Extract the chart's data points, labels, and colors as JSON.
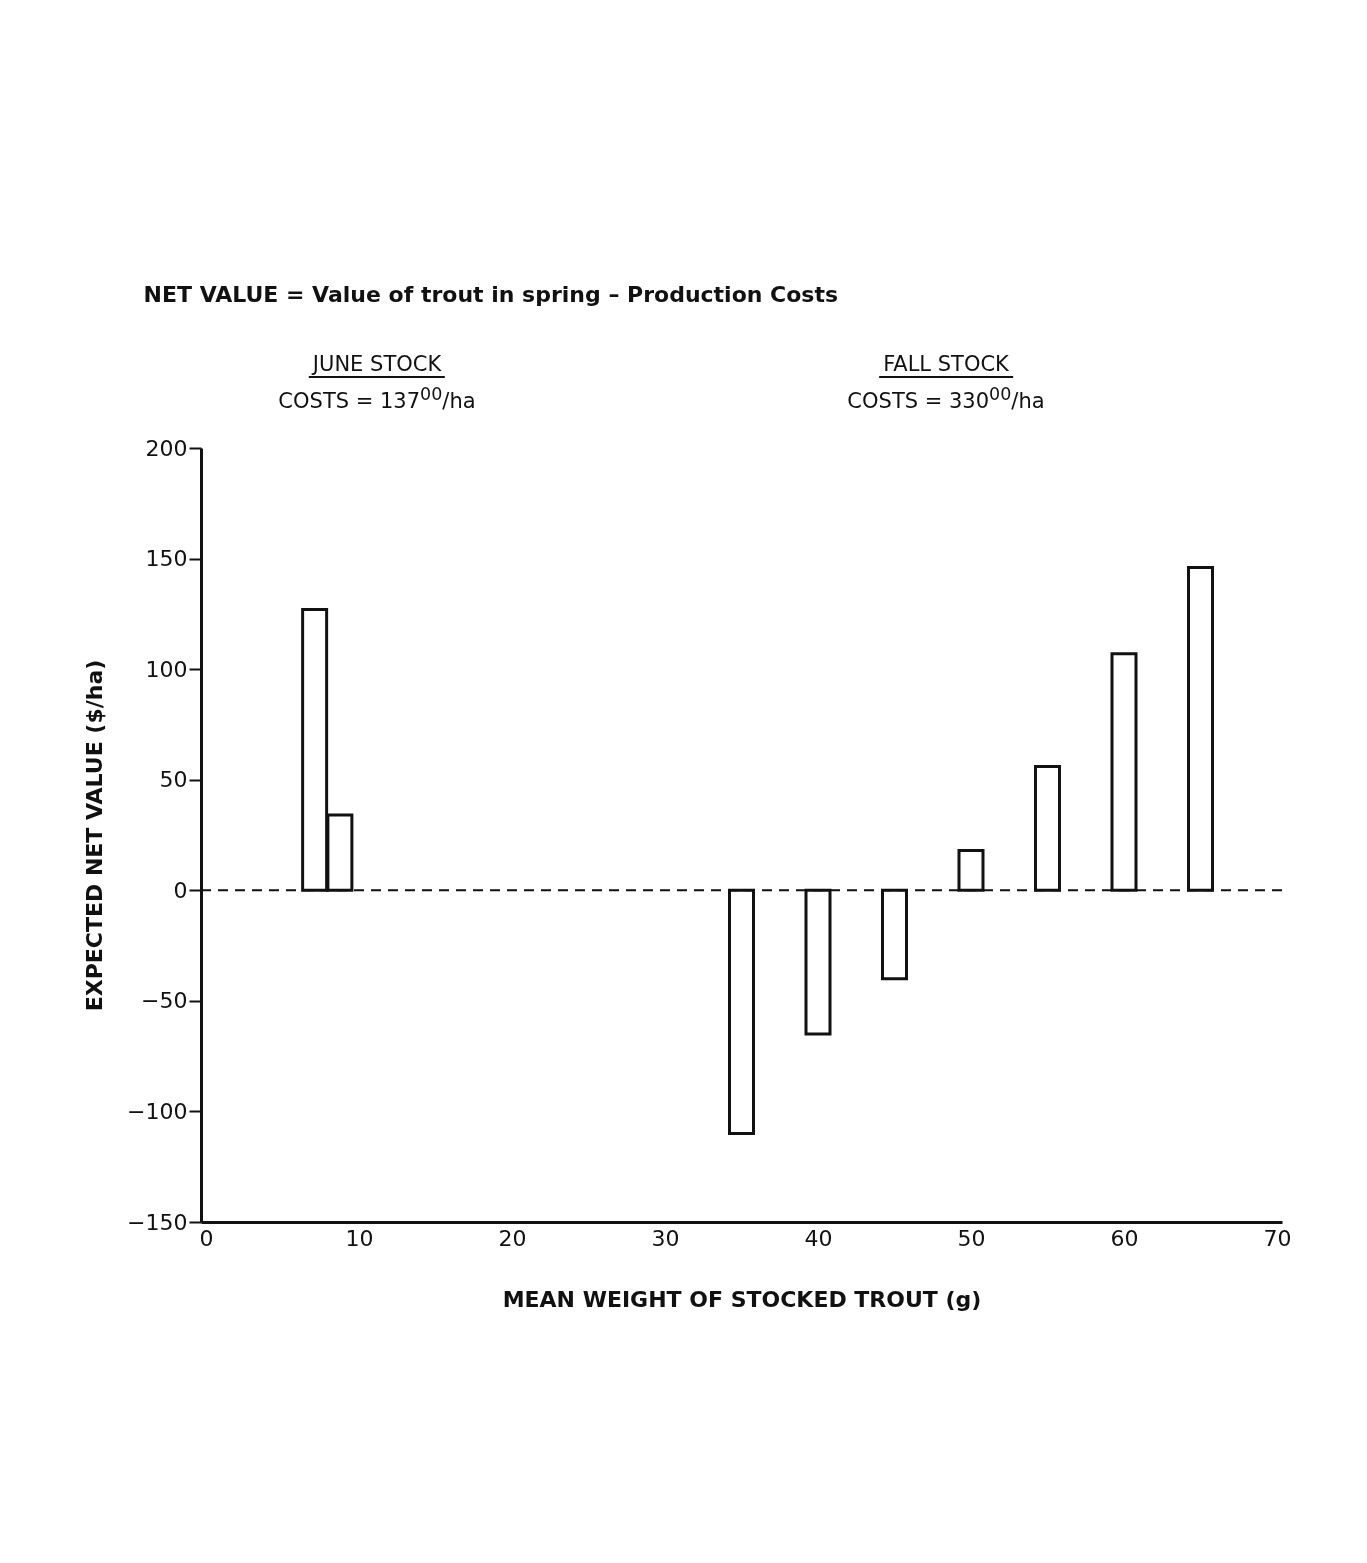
{
  "chart_data": {
    "type": "bar",
    "title": "NET VALUE = Value of trout in spring – Production Costs",
    "xlabel": "MEAN WEIGHT OF STOCKED TROUT (g)",
    "ylabel": "EXPECTED NET VALUE ($/ha)",
    "x": [
      7.1,
      8.75,
      35,
      40,
      45,
      50,
      55,
      60,
      65
    ],
    "values": [
      127,
      34,
      -110,
      -65,
      -40,
      18,
      56,
      107,
      146
    ],
    "color": "#ffffff",
    "xlim": [
      0,
      70
    ],
    "xticks": [
      0,
      10,
      20,
      30,
      40,
      50,
      60,
      70
    ],
    "ylim": [
      -150,
      200
    ],
    "yticks": [
      -150,
      -100,
      -50,
      0,
      50,
      100,
      150,
      200
    ],
    "ref_lines": [
      {
        "axis": "y",
        "value": 0,
        "line_style": "dashed"
      }
    ],
    "annotations": [
      "JUNE STOCK",
      "COSTS = 137$^{00}$/ha",
      "FALL STOCK",
      "COSTS = 330$^{00}$/ha"
    ],
    "grid": false
  }
}
